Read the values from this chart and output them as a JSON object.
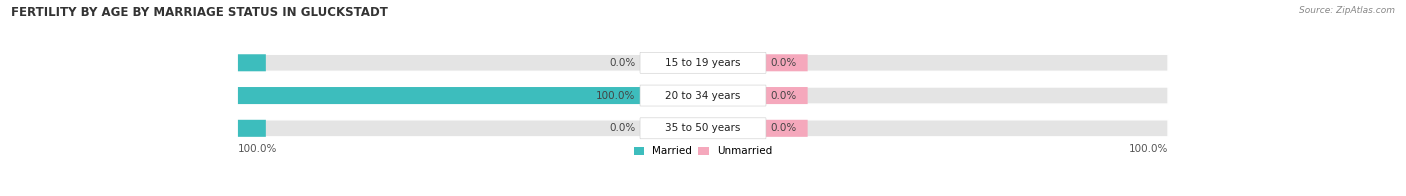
{
  "title": "FERTILITY BY AGE BY MARRIAGE STATUS IN GLUCKSTADT",
  "source": "Source: ZipAtlas.com",
  "categories": [
    "15 to 19 years",
    "20 to 34 years",
    "35 to 50 years"
  ],
  "married_values": [
    0.0,
    100.0,
    0.0
  ],
  "unmarried_values": [
    0.0,
    0.0,
    0.0
  ],
  "married_color": "#3dbdbd",
  "unmarried_color": "#f5a8bc",
  "bar_bg_color": "#e4e4e4",
  "title_fontsize": 8.5,
  "label_fontsize": 7.5,
  "cat_fontsize": 7.5,
  "axis_label_left": "100.0%",
  "axis_label_right": "100.0%",
  "legend_married": "Married",
  "legend_unmarried": "Unmarried",
  "background_color": "#ffffff",
  "fig_width": 14.06,
  "fig_height": 1.96
}
